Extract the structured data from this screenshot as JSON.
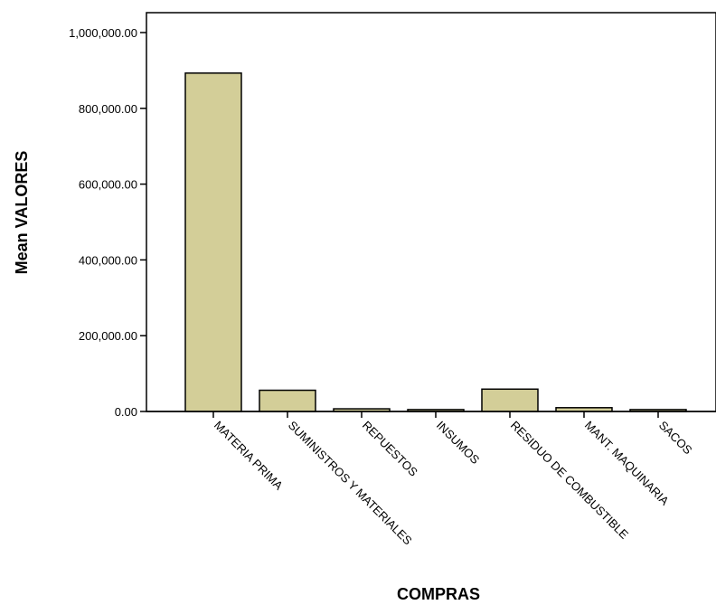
{
  "chart_data": {
    "type": "bar",
    "title": "",
    "xlabel": "COMPRAS",
    "ylabel": "Mean VALORES",
    "categories": [
      "MATERIA PRIMA",
      "SUMINISTROS Y MATERIALES",
      "REPUESTOS",
      "INSUMOS",
      "RESIDUO DE COMBUSTIBLE",
      "MANT. MAQUINARIA",
      "SACOS"
    ],
    "values": [
      893000,
      56000,
      7000,
      5000,
      59000,
      10000,
      5000
    ],
    "ylim": [
      0,
      1000000
    ],
    "yticks": [
      0,
      200000,
      400000,
      600000,
      800000,
      1000000
    ],
    "ytick_labels": [
      "0.00",
      "200,000.00",
      "400,000.00",
      "600,000.00",
      "800,000.00",
      "1,000,000.00"
    ],
    "grid": false,
    "legend": "none",
    "colors": {
      "bar_fill": "#d3ce98",
      "bar_stroke": "#000000"
    }
  }
}
